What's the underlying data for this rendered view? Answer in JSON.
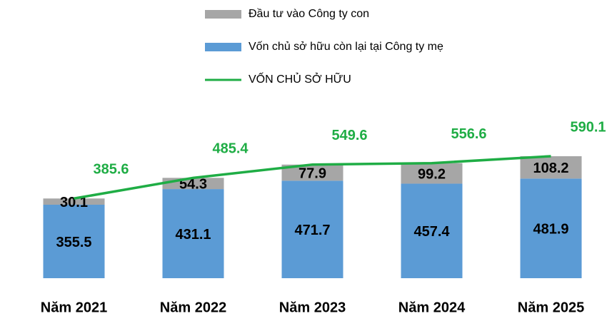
{
  "chart_data": {
    "type": "bar",
    "categories": [
      "Năm 2021",
      "Năm 2022",
      "Năm 2023",
      "Năm 2024",
      "Năm 2025"
    ],
    "series": [
      {
        "name": "Đầu tư vào Công ty con",
        "color": "#a6a6a6",
        "values": [
          30.1,
          54.3,
          77.9,
          99.2,
          108.2
        ]
      },
      {
        "name": "Vốn chủ sở hữu còn lại tại Công ty mẹ",
        "color": "#5b9bd5",
        "values": [
          355.5,
          431.1,
          471.7,
          457.4,
          481.9
        ]
      },
      {
        "name": "VỐN CHỦ SỞ HỮU",
        "type": "line",
        "color": "#1fad45",
        "values": [
          385.6,
          485.4,
          549.6,
          556.6,
          590.1
        ]
      }
    ],
    "stacked": true
  }
}
